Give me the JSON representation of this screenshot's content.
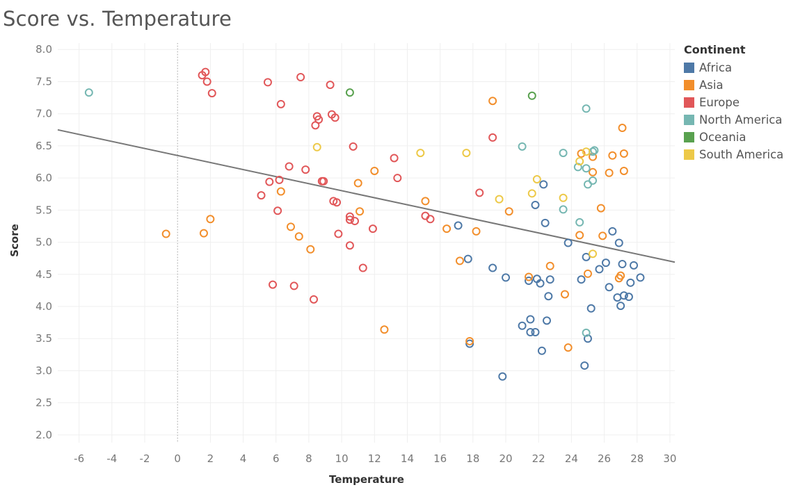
{
  "chart_data": {
    "type": "scatter",
    "title": "Score vs. Temperature",
    "xlabel": "Temperature",
    "ylabel": "Score",
    "xlim": [
      -7.3,
      30.3
    ],
    "ylim": [
      1.88,
      8.1
    ],
    "xticks": [
      -6,
      -4,
      -2,
      0,
      2,
      4,
      6,
      8,
      10,
      12,
      14,
      16,
      18,
      20,
      22,
      24,
      26,
      28,
      30
    ],
    "yticks": [
      2.0,
      2.5,
      3.0,
      3.5,
      4.0,
      4.5,
      5.0,
      5.5,
      6.0,
      6.5,
      7.0,
      7.5,
      8.0
    ],
    "grid": true,
    "legend_title": "Continent",
    "legend_position": "right",
    "trend_line": {
      "x": [
        -7.3,
        30.3
      ],
      "y": [
        6.75,
        4.69
      ],
      "color": "#777777"
    },
    "zero_reference_line": true,
    "series": [
      {
        "name": "Africa",
        "color": "#4e79a7",
        "x": [
          17.1,
          17.7,
          17.8,
          19.2,
          19.8,
          20.0,
          21.0,
          21.4,
          21.5,
          21.5,
          21.8,
          21.8,
          21.9,
          22.1,
          22.2,
          22.3,
          22.4,
          22.5,
          22.6,
          22.7,
          23.8,
          24.6,
          24.8,
          24.9,
          25.0,
          25.2,
          25.7,
          26.1,
          26.3,
          26.5,
          26.8,
          26.9,
          27.0,
          27.1,
          27.2,
          27.5,
          27.6,
          27.8,
          28.2
        ],
        "y": [
          5.26,
          4.74,
          3.42,
          4.6,
          2.91,
          4.45,
          3.7,
          4.4,
          3.8,
          3.6,
          5.58,
          3.6,
          4.43,
          4.36,
          3.31,
          5.9,
          5.3,
          3.78,
          4.16,
          4.42,
          4.99,
          4.42,
          3.08,
          4.77,
          3.5,
          3.97,
          4.58,
          4.68,
          4.3,
          5.17,
          4.14,
          4.99,
          4.01,
          4.66,
          4.17,
          4.15,
          4.37,
          4.64,
          4.45
        ]
      },
      {
        "name": "Asia",
        "color": "#f28e2b",
        "x": [
          -0.7,
          1.6,
          2.0,
          6.3,
          6.9,
          7.4,
          8.1,
          11.0,
          11.1,
          12.0,
          12.6,
          15.1,
          16.4,
          17.2,
          17.8,
          18.2,
          19.2,
          20.2,
          21.4,
          22.7,
          23.6,
          23.8,
          24.5,
          24.6,
          25.0,
          25.3,
          25.3,
          25.8,
          25.9,
          26.3,
          26.5,
          26.9,
          27.0,
          27.1,
          27.2,
          27.2
        ],
        "y": [
          5.13,
          5.14,
          5.36,
          5.79,
          5.24,
          5.09,
          4.89,
          5.92,
          5.48,
          6.11,
          3.64,
          5.64,
          5.21,
          4.71,
          3.46,
          5.17,
          7.2,
          5.48,
          4.46,
          4.63,
          4.19,
          3.36,
          5.11,
          6.38,
          4.51,
          6.33,
          6.09,
          5.53,
          5.1,
          6.08,
          6.35,
          4.44,
          4.48,
          6.78,
          6.38,
          6.11
        ]
      },
      {
        "name": "Europe",
        "color": "#e15759",
        "x": [
          1.5,
          1.7,
          1.8,
          2.1,
          5.1,
          5.5,
          5.6,
          5.8,
          6.1,
          6.2,
          6.3,
          6.8,
          7.1,
          7.5,
          7.8,
          8.3,
          8.4,
          8.5,
          8.6,
          8.8,
          8.9,
          9.3,
          9.4,
          9.5,
          9.6,
          9.7,
          9.8,
          10.5,
          10.5,
          10.5,
          10.7,
          10.8,
          11.3,
          11.9,
          13.2,
          13.4,
          15.1,
          15.4,
          18.4,
          19.2
        ],
        "y": [
          7.6,
          7.65,
          7.5,
          7.32,
          5.73,
          7.49,
          5.94,
          4.34,
          5.49,
          5.97,
          7.15,
          6.18,
          4.32,
          7.57,
          6.13,
          4.11,
          6.82,
          6.96,
          6.91,
          5.95,
          5.95,
          7.45,
          6.99,
          5.64,
          6.94,
          5.62,
          5.13,
          5.4,
          5.35,
          4.95,
          6.49,
          5.33,
          4.6,
          5.21,
          6.31,
          6.0,
          5.41,
          5.36,
          5.77,
          6.63
        ]
      },
      {
        "name": "North America",
        "color": "#76b7b2",
        "x": [
          -5.4,
          21.0,
          23.5,
          23.5,
          24.4,
          24.5,
          24.9,
          24.9,
          24.9,
          25.0,
          25.3,
          25.3,
          25.4
        ],
        "y": [
          7.33,
          6.49,
          6.39,
          5.51,
          6.17,
          5.31,
          7.08,
          6.15,
          3.59,
          5.9,
          5.96,
          6.41,
          6.43
        ]
      },
      {
        "name": "Oceania",
        "color": "#59a14f",
        "x": [
          10.5,
          21.6
        ],
        "y": [
          7.33,
          7.28
        ]
      },
      {
        "name": "South America",
        "color": "#edc948",
        "x": [
          8.5,
          14.8,
          17.6,
          19.6,
          21.6,
          21.9,
          23.5,
          24.5,
          24.9,
          25.3
        ],
        "y": [
          6.48,
          6.39,
          6.39,
          5.67,
          5.76,
          5.98,
          5.69,
          6.26,
          6.41,
          4.82
        ]
      }
    ]
  }
}
